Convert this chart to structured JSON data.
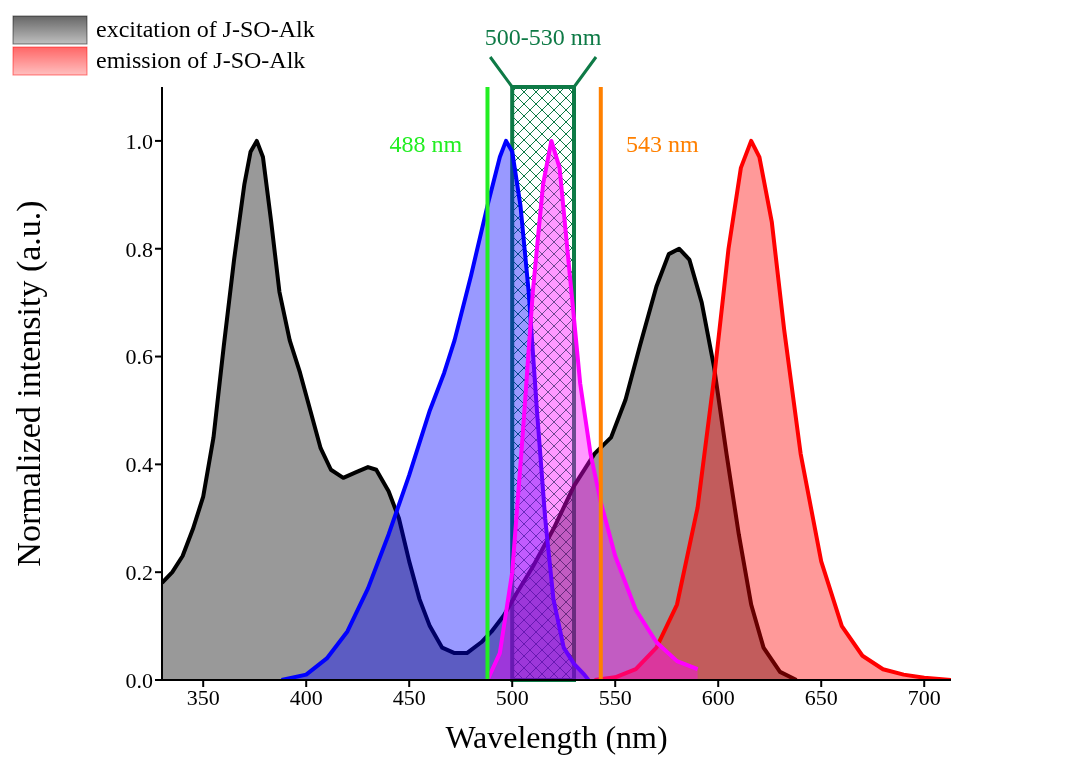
{
  "chart_data": {
    "type": "area",
    "xlabel": "Wavelength (nm)",
    "ylabel": "Normalized intensity (a.u.)",
    "xlim": [
      330,
      713
    ],
    "xticks": [
      350,
      400,
      450,
      500,
      550,
      600,
      650,
      700
    ],
    "ylim": [
      0,
      1.1
    ],
    "yticks": [
      {
        "value": 0,
        "label": "0.0"
      },
      {
        "value": 0.2,
        "label": "0.2"
      },
      {
        "value": 0.4,
        "label": "0.4"
      },
      {
        "value": 0.6,
        "label": "0.6"
      },
      {
        "value": 0.8,
        "label": "0.8"
      },
      {
        "value": 1,
        "label": "1.0"
      }
    ],
    "legend": "top",
    "series": [
      {
        "name": "excitation of J-SO-Alk",
        "color": "#000000",
        "x": [
          330,
          335,
          340,
          345,
          350,
          355,
          360,
          365,
          370,
          373,
          376,
          379,
          383,
          387,
          392,
          397,
          402,
          407,
          412,
          418,
          424,
          430,
          434,
          440,
          445,
          450,
          455,
          460,
          466,
          472,
          478,
          485,
          490,
          496,
          502,
          510,
          520,
          530,
          540,
          548,
          555,
          562,
          570,
          576,
          581,
          586,
          592,
          598,
          604,
          610,
          616,
          622,
          630,
          638
        ],
        "values": [
          0.18,
          0.2,
          0.23,
          0.28,
          0.34,
          0.45,
          0.62,
          0.78,
          0.92,
          0.98,
          1.0,
          0.97,
          0.85,
          0.72,
          0.63,
          0.57,
          0.5,
          0.43,
          0.39,
          0.375,
          0.385,
          0.395,
          0.39,
          0.35,
          0.3,
          0.22,
          0.15,
          0.1,
          0.06,
          0.05,
          0.05,
          0.07,
          0.09,
          0.12,
          0.16,
          0.21,
          0.28,
          0.36,
          0.42,
          0.45,
          0.52,
          0.62,
          0.73,
          0.79,
          0.8,
          0.78,
          0.7,
          0.58,
          0.42,
          0.27,
          0.14,
          0.06,
          0.015,
          0
        ]
      },
      {
        "name": "emission of J-SO-Alk",
        "color": "#ff0000",
        "x": [
          540,
          550,
          560,
          570,
          580,
          590,
          598,
          605,
          611,
          616,
          620,
          626,
          632,
          640,
          650,
          660,
          670,
          680,
          690,
          700,
          713
        ],
        "values": [
          0,
          0.005,
          0.02,
          0.06,
          0.14,
          0.32,
          0.56,
          0.8,
          0.95,
          1.0,
          0.97,
          0.85,
          0.65,
          0.42,
          0.22,
          0.1,
          0.045,
          0.02,
          0.01,
          0.004,
          0
        ]
      },
      {
        "color": "#0000ff",
        "x": [
          388,
          400,
          410,
          420,
          430,
          440,
          450,
          460,
          467,
          472,
          480,
          488,
          494,
          497,
          500,
          504,
          508,
          512,
          516,
          520,
          525,
          530,
          535,
          537
        ],
        "values": [
          0,
          0.01,
          0.04,
          0.09,
          0.17,
          0.27,
          0.38,
          0.5,
          0.57,
          0.63,
          0.75,
          0.88,
          0.97,
          1.0,
          0.98,
          0.88,
          0.72,
          0.5,
          0.3,
          0.15,
          0.06,
          0.03,
          0.01,
          0
        ]
      },
      {
        "color": "#ff00ff",
        "x": [
          488,
          494,
          500,
          505,
          510,
          515,
          519,
          523,
          528,
          533,
          538,
          543,
          550,
          560,
          570,
          580,
          590
        ],
        "values": [
          0,
          0.05,
          0.2,
          0.45,
          0.72,
          0.92,
          1.0,
          0.95,
          0.75,
          0.55,
          0.42,
          0.33,
          0.23,
          0.13,
          0.07,
          0.035,
          0.02
        ]
      }
    ],
    "ref_lines": [
      {
        "axis": "x",
        "value": 488,
        "label": "488 nm",
        "color": "#22ee22"
      },
      {
        "axis": "x",
        "value": 543,
        "label": "543 nm",
        "color": "#ff8000"
      }
    ],
    "bands": [
      {
        "axis": "x",
        "from": 500,
        "to": 530,
        "label": "500-530 nm",
        "color": "#0e7a46"
      }
    ]
  }
}
